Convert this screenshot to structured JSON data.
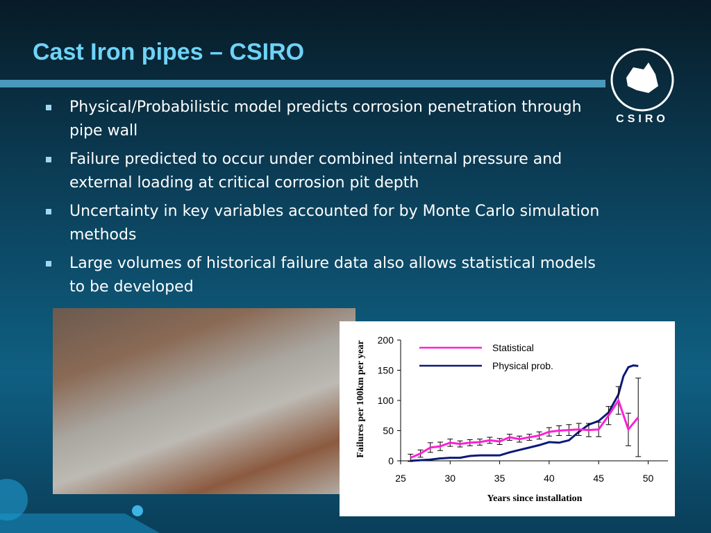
{
  "title": "Cast Iron pipes – CSIRO",
  "bullets": [
    "Physical/Probabilistic model predicts corrosion penetration through pipe wall",
    "Failure predicted to occur under combined internal pressure and external loading at critical corrosion pit depth",
    "Uncertainty in key variables accounted for by Monte Carlo simulation methods",
    "Large volumes of historical failure data also allows statistical models to be developed"
  ],
  "logo": {
    "text": "CSIRO"
  },
  "chart_data": {
    "type": "line",
    "xlabel": "Years since installation",
    "ylabel": "Failures per 100km per year",
    "xlim": [
      25,
      52
    ],
    "xticks": [
      25,
      30,
      35,
      40,
      45,
      50
    ],
    "ylim": [
      0,
      200
    ],
    "yticks": [
      0,
      50,
      100,
      150,
      200
    ],
    "series": [
      {
        "name": "Statistical",
        "color": "#ff1fd6",
        "x": [
          26,
          27,
          28,
          29,
          30,
          31,
          32,
          33,
          34,
          35,
          36,
          37,
          38,
          39,
          40,
          41,
          42,
          43,
          44,
          45,
          46,
          47,
          48,
          49
        ],
        "values": [
          5,
          12,
          22,
          24,
          30,
          28,
          30,
          31,
          34,
          32,
          39,
          36,
          39,
          42,
          48,
          50,
          51,
          52,
          51,
          52,
          75,
          100,
          52,
          72
        ],
        "errors": [
          6,
          6,
          8,
          7,
          6,
          5,
          5,
          5,
          5,
          5,
          5,
          5,
          5,
          6,
          7,
          8,
          9,
          10,
          11,
          12,
          15,
          23,
          27,
          65
        ]
      },
      {
        "name": "Physical prob.",
        "color": "#0a1a78",
        "x": [
          26,
          27,
          28,
          29,
          30,
          31,
          32,
          33,
          34,
          35,
          36,
          37,
          38,
          39,
          40,
          41,
          42,
          43,
          44,
          45,
          46,
          47,
          47.5,
          48,
          48.5,
          49
        ],
        "values": [
          0,
          1,
          2,
          4,
          5,
          5,
          8,
          9,
          9,
          9,
          14,
          18,
          22,
          26,
          31,
          30,
          34,
          48,
          60,
          66,
          80,
          110,
          140,
          155,
          158,
          157
        ]
      }
    ]
  }
}
